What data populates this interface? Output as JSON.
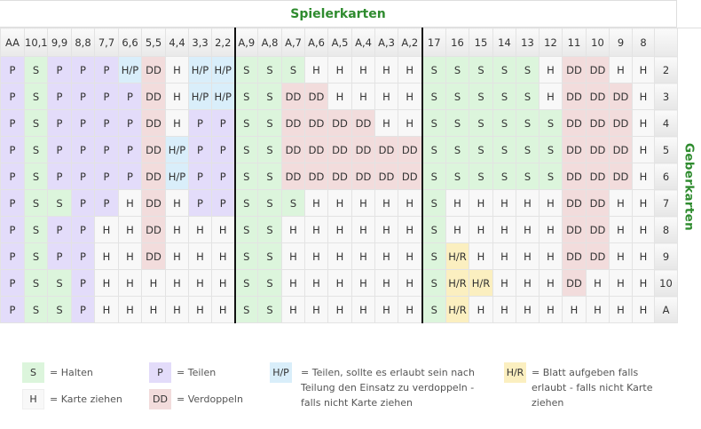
{
  "title": "Spielerkarten",
  "side_label": "Geberkarten",
  "columns": [
    "AA",
    "10,10",
    "9,9",
    "8,8",
    "7,7",
    "6,6",
    "5,5",
    "4,4",
    "3,3",
    "2,2",
    "A,9",
    "A,8",
    "A,7",
    "A,6",
    "A,5",
    "A,4",
    "A,3",
    "A,2",
    "17",
    "16",
    "15",
    "14",
    "13",
    "12",
    "11",
    "10",
    "9",
    "8",
    ""
  ],
  "rows": [
    {
      "dealer": "2",
      "cells": [
        "P",
        "S",
        "P",
        "P",
        "P",
        "H/P",
        "DD",
        "H",
        "H/P",
        "H/P",
        "S",
        "S",
        "S",
        "H",
        "H",
        "H",
        "H",
        "H",
        "S",
        "S",
        "S",
        "S",
        "S",
        "H",
        "DD",
        "DD",
        "H",
        "H"
      ]
    },
    {
      "dealer": "3",
      "cells": [
        "P",
        "S",
        "P",
        "P",
        "P",
        "P",
        "DD",
        "H",
        "H/P",
        "H/P",
        "S",
        "S",
        "DD",
        "DD",
        "H",
        "H",
        "H",
        "H",
        "S",
        "S",
        "S",
        "S",
        "S",
        "H",
        "DD",
        "DD",
        "DD",
        "H"
      ]
    },
    {
      "dealer": "4",
      "cells": [
        "P",
        "S",
        "P",
        "P",
        "P",
        "P",
        "DD",
        "H",
        "P",
        "P",
        "S",
        "S",
        "DD",
        "DD",
        "DD",
        "DD",
        "H",
        "H",
        "S",
        "S",
        "S",
        "S",
        "S",
        "S",
        "DD",
        "DD",
        "DD",
        "H"
      ]
    },
    {
      "dealer": "5",
      "cells": [
        "P",
        "S",
        "P",
        "P",
        "P",
        "P",
        "DD",
        "H/P",
        "P",
        "P",
        "S",
        "S",
        "DD",
        "DD",
        "DD",
        "DD",
        "DD",
        "DD",
        "S",
        "S",
        "S",
        "S",
        "S",
        "S",
        "DD",
        "DD",
        "DD",
        "H"
      ]
    },
    {
      "dealer": "6",
      "cells": [
        "P",
        "S",
        "P",
        "P",
        "P",
        "P",
        "DD",
        "H/P",
        "P",
        "P",
        "S",
        "S",
        "DD",
        "DD",
        "DD",
        "DD",
        "DD",
        "DD",
        "S",
        "S",
        "S",
        "S",
        "S",
        "S",
        "DD",
        "DD",
        "DD",
        "H"
      ]
    },
    {
      "dealer": "7",
      "cells": [
        "P",
        "S",
        "S",
        "P",
        "P",
        "H",
        "DD",
        "H",
        "P",
        "P",
        "S",
        "S",
        "S",
        "H",
        "H",
        "H",
        "H",
        "H",
        "S",
        "H",
        "H",
        "H",
        "H",
        "H",
        "DD",
        "DD",
        "H",
        "H"
      ]
    },
    {
      "dealer": "8",
      "cells": [
        "P",
        "S",
        "P",
        "P",
        "H",
        "H",
        "DD",
        "H",
        "H",
        "H",
        "S",
        "S",
        "H",
        "H",
        "H",
        "H",
        "H",
        "H",
        "S",
        "H",
        "H",
        "H",
        "H",
        "H",
        "DD",
        "DD",
        "H",
        "H"
      ]
    },
    {
      "dealer": "9",
      "cells": [
        "P",
        "S",
        "P",
        "P",
        "H",
        "H",
        "DD",
        "H",
        "H",
        "H",
        "S",
        "S",
        "H",
        "H",
        "H",
        "H",
        "H",
        "H",
        "S",
        "H/R",
        "H",
        "H",
        "H",
        "H",
        "DD",
        "DD",
        "H",
        "H"
      ]
    },
    {
      "dealer": "10",
      "cells": [
        "P",
        "S",
        "S",
        "P",
        "H",
        "H",
        "H",
        "H",
        "H",
        "H",
        "S",
        "S",
        "H",
        "H",
        "H",
        "H",
        "H",
        "H",
        "S",
        "H/R",
        "H/R",
        "H",
        "H",
        "H",
        "DD",
        "H",
        "H",
        "H"
      ]
    },
    {
      "dealer": "A",
      "cells": [
        "P",
        "S",
        "S",
        "P",
        "H",
        "H",
        "H",
        "H",
        "H",
        "H",
        "S",
        "S",
        "H",
        "H",
        "H",
        "H",
        "H",
        "H",
        "S",
        "H/R",
        "H",
        "H",
        "H",
        "H",
        "H",
        "H",
        "H",
        "H"
      ]
    }
  ],
  "legend": [
    {
      "code": "S",
      "text": "= Halten"
    },
    {
      "code": "H",
      "text": "= Karte ziehen"
    },
    {
      "code": "P",
      "text": "= Teilen"
    },
    {
      "code": "DD",
      "text": "= Verdoppeln"
    },
    {
      "code": "H/P",
      "text": "= Teilen, sollte es erlaubt sein nach Teilung den Einsatz zu verdoppeln - falls nicht Karte ziehen"
    },
    {
      "code": "H/R",
      "text": "= Blatt aufgeben falls erlaubt - falls nicht Karte ziehen"
    }
  ],
  "colors": {
    "S": "#dcf5dc",
    "H": "#f8f8f8",
    "P": "#e3dcfa",
    "DD": "#f2dcdc",
    "H/P": "#d9eefa",
    "H/R": "#fbefc0",
    "title": "#2e8b2e"
  }
}
